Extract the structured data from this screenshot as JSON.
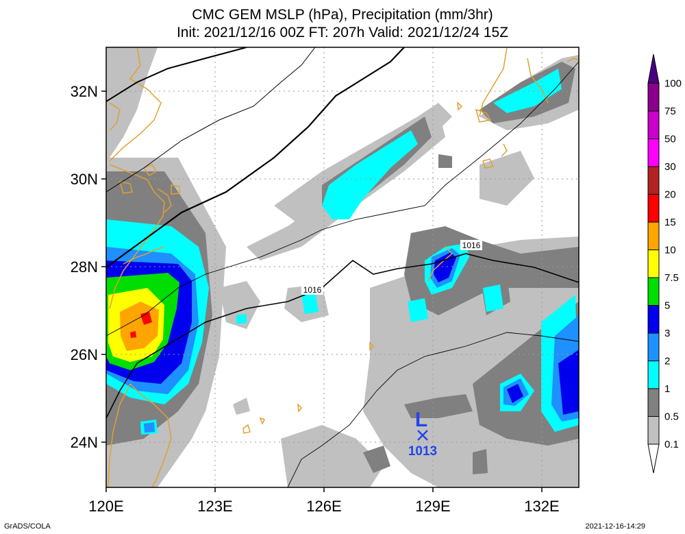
{
  "title": {
    "line1": "CMC GEM MSLP (hPa), Precipitation (mm/3hr)",
    "line2": "Init: 2021/12/16 00Z  FT: 207h  Valid: 2021/12/24 15Z"
  },
  "map": {
    "lon_range": [
      120,
      133
    ],
    "lat_range": [
      23,
      33
    ],
    "lon_ticks": [
      {
        "value": 120,
        "label": "120E"
      },
      {
        "value": 123,
        "label": "123E"
      },
      {
        "value": 126,
        "label": "126E"
      },
      {
        "value": 129,
        "label": "129E"
      },
      {
        "value": 132,
        "label": "132E"
      }
    ],
    "lat_ticks": [
      {
        "value": 24,
        "label": "24N"
      },
      {
        "value": 26,
        "label": "26N"
      },
      {
        "value": 28,
        "label": "28N"
      },
      {
        "value": 30,
        "label": "30N"
      },
      {
        "value": 32,
        "label": "32N"
      }
    ],
    "grid": true,
    "isobar_labels": [
      {
        "text": "1016",
        "lon": 125.6,
        "lat": 27.4
      },
      {
        "text": "1016",
        "lon": 129.8,
        "lat": 28.45
      }
    ],
    "low": {
      "symbol": "L",
      "pressure": "1013",
      "lon": 128.85,
      "lat": 24.2,
      "color": "#2244ee"
    }
  },
  "colorbar": {
    "levels": [
      "0.1",
      "0.5",
      "1",
      "2",
      "3",
      "5",
      "7.5",
      "10",
      "15",
      "20",
      "30",
      "50",
      "75",
      "100"
    ],
    "colors": [
      "#c0c0c0",
      "#808080",
      "#00ffff",
      "#1e90ff",
      "#0000ee",
      "#00dd00",
      "#ffff00",
      "#ffa500",
      "#ff0000",
      "#b22222",
      "#ff00ff",
      "#cc00cc",
      "#8b008b",
      "#4b0082"
    ]
  },
  "footer": {
    "left": "GrADS/COLA",
    "right": "2021-12-16-14:29"
  }
}
